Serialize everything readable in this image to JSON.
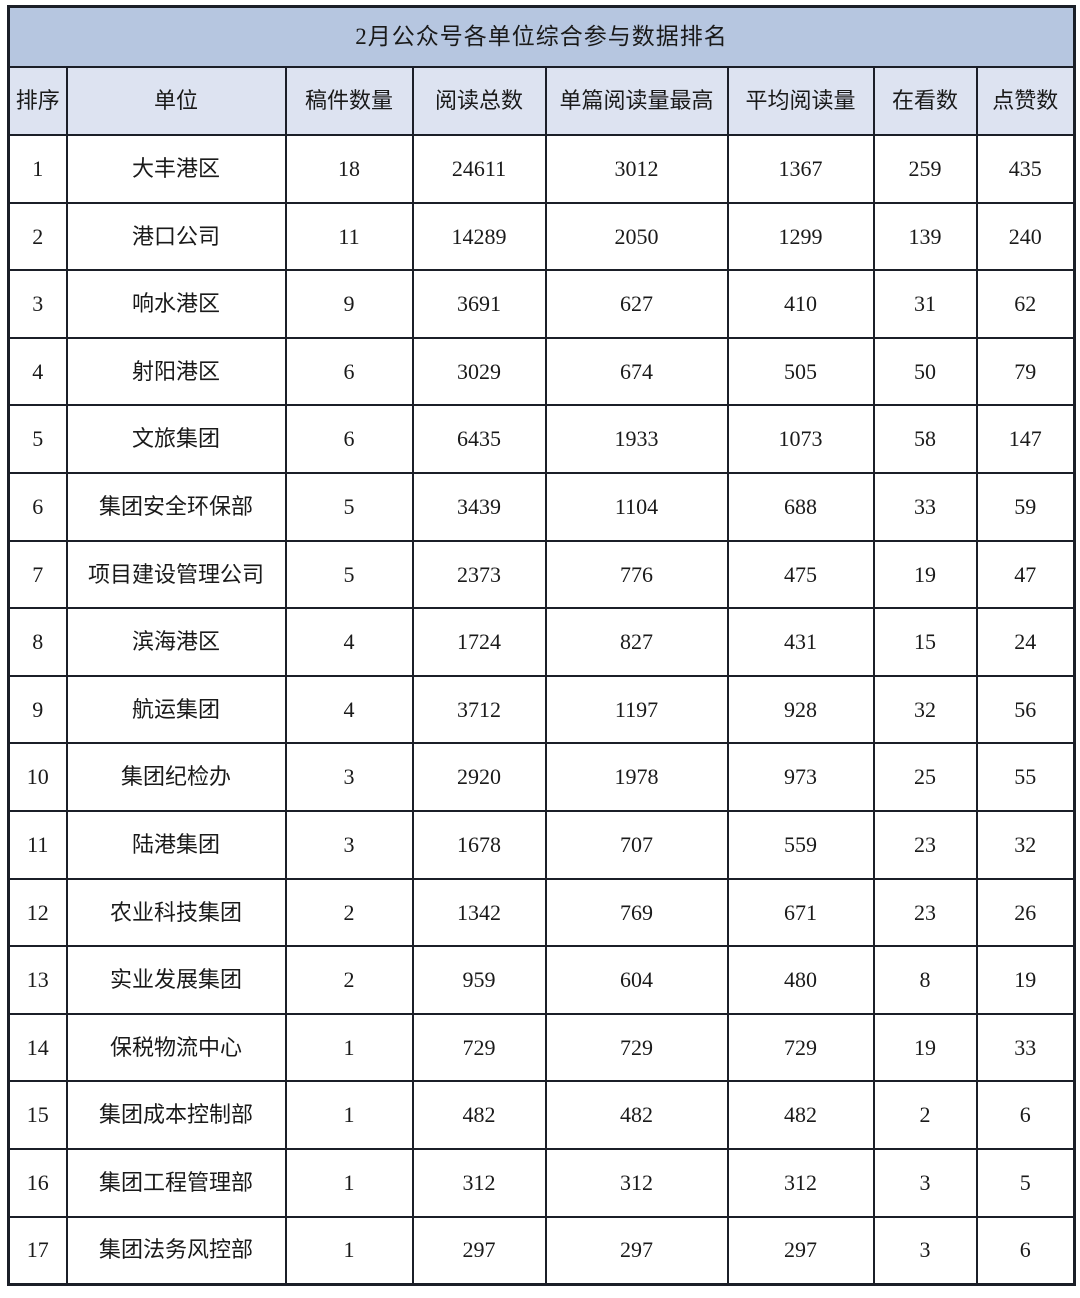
{
  "chart_data": {
    "type": "table",
    "title": "2月公众号各单位综合参与数据排名",
    "columns": [
      "排序",
      "单位",
      "稿件数量",
      "阅读总数",
      "单篇阅读量最高",
      "平均阅读量",
      "在看数",
      "点赞数"
    ],
    "rows": [
      [
        "1",
        "大丰港区",
        "18",
        "24611",
        "3012",
        "1367",
        "259",
        "435"
      ],
      [
        "2",
        "港口公司",
        "11",
        "14289",
        "2050",
        "1299",
        "139",
        "240"
      ],
      [
        "3",
        "响水港区",
        "9",
        "3691",
        "627",
        "410",
        "31",
        "62"
      ],
      [
        "4",
        "射阳港区",
        "6",
        "3029",
        "674",
        "505",
        "50",
        "79"
      ],
      [
        "5",
        "文旅集团",
        "6",
        "6435",
        "1933",
        "1073",
        "58",
        "147"
      ],
      [
        "6",
        "集团安全环保部",
        "5",
        "3439",
        "1104",
        "688",
        "33",
        "59"
      ],
      [
        "7",
        "项目建设管理公司",
        "5",
        "2373",
        "776",
        "475",
        "19",
        "47"
      ],
      [
        "8",
        "滨海港区",
        "4",
        "1724",
        "827",
        "431",
        "15",
        "24"
      ],
      [
        "9",
        "航运集团",
        "4",
        "3712",
        "1197",
        "928",
        "32",
        "56"
      ],
      [
        "10",
        "集团纪检办",
        "3",
        "2920",
        "1978",
        "973",
        "25",
        "55"
      ],
      [
        "11",
        "陆港集团",
        "3",
        "1678",
        "707",
        "559",
        "23",
        "32"
      ],
      [
        "12",
        "农业科技集团",
        "2",
        "1342",
        "769",
        "671",
        "23",
        "26"
      ],
      [
        "13",
        "实业发展集团",
        "2",
        "959",
        "604",
        "480",
        "8",
        "19"
      ],
      [
        "14",
        "保税物流中心",
        "1",
        "729",
        "729",
        "729",
        "19",
        "33"
      ],
      [
        "15",
        "集团成本控制部",
        "1",
        "482",
        "482",
        "482",
        "2",
        "6"
      ],
      [
        "16",
        "集团工程管理部",
        "1",
        "312",
        "312",
        "312",
        "3",
        "5"
      ],
      [
        "17",
        "集团法务风控部",
        "1",
        "297",
        "297",
        "297",
        "3",
        "6"
      ]
    ],
    "layout": {
      "grid": "on",
      "title_position": "top-merged-row"
    }
  },
  "colors": {
    "title_bg": "#b6c6e0",
    "header_bg": "#dde3f1",
    "border": "#1b1f28",
    "text": "#1a1a1a",
    "row_bg": "#ffffff",
    "page_bg": "#ffffff"
  }
}
